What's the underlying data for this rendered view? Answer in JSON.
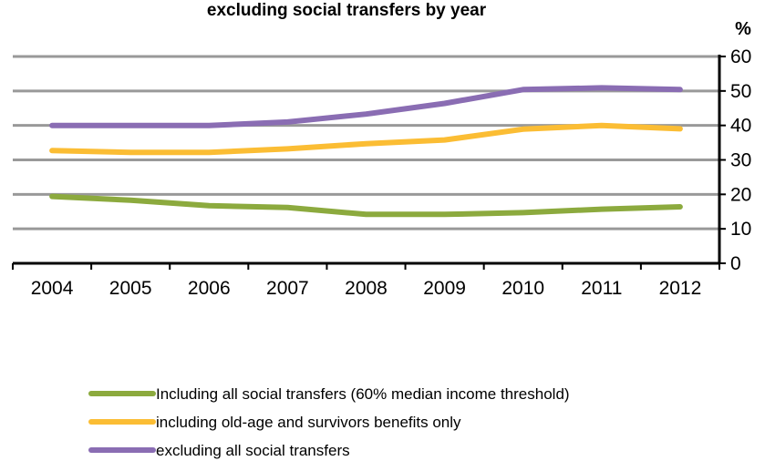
{
  "chart_data": {
    "type": "line",
    "title": "excluding social transfers by year",
    "ylabel": "%",
    "xlabel": "",
    "categories": [
      "2004",
      "2005",
      "2006",
      "2007",
      "2008",
      "2009",
      "2010",
      "2011",
      "2012"
    ],
    "ylim": [
      0,
      60
    ],
    "yticks": [
      0,
      10,
      20,
      30,
      40,
      50,
      60
    ],
    "grid": true,
    "legend_position": "bottom",
    "y_axis_position": "right",
    "series": [
      {
        "name": "Including all social transfers (60% median income threshold)",
        "color": "#8caa3e",
        "values": [
          19.4,
          18.3,
          16.7,
          16.2,
          14.2,
          14.2,
          14.7,
          15.7,
          16.4
        ]
      },
      {
        "name": "including old-age and survivors benefits only",
        "color": "#fbbd34",
        "values": [
          32.7,
          32.2,
          32.2,
          33.2,
          34.7,
          35.8,
          38.9,
          40.0,
          39.0
        ]
      },
      {
        "name": "excluding all social transfers",
        "color": "#8a6db3",
        "values": [
          40.0,
          40.0,
          40.0,
          41.0,
          43.3,
          46.4,
          50.4,
          50.9,
          50.4
        ]
      }
    ]
  }
}
